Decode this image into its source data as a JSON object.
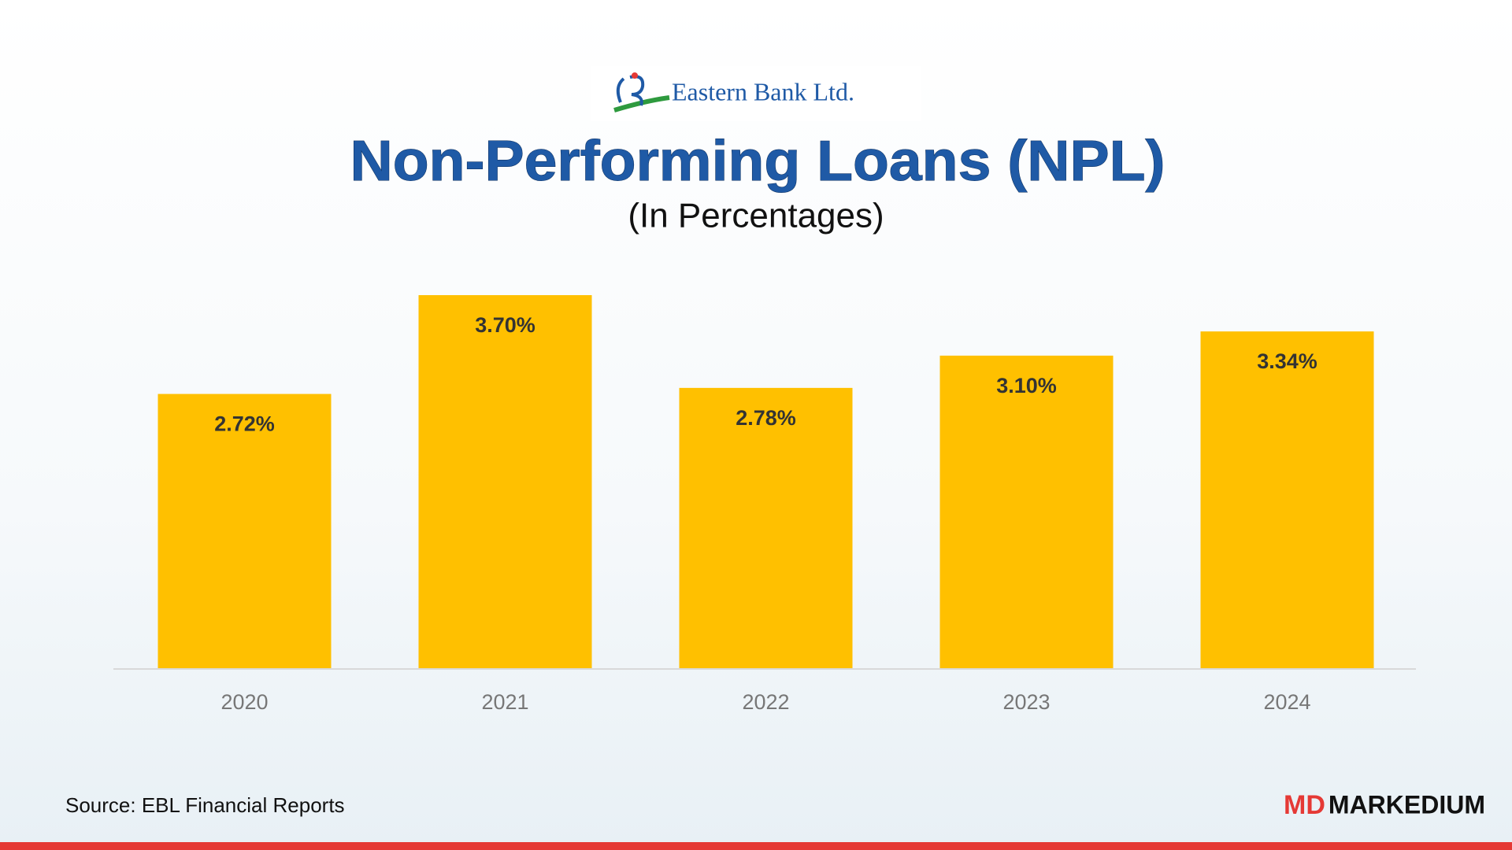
{
  "logo_text": "Eastern Bank Ltd.",
  "chart_data": {
    "type": "bar",
    "title": "Non-Performing Loans (NPL)",
    "subtitle": "(In Percentages)",
    "categories": [
      "2020",
      "2021",
      "2022",
      "2023",
      "2024"
    ],
    "values": [
      2.72,
      3.7,
      2.78,
      3.1,
      3.34
    ],
    "value_labels": [
      "2.72%",
      "3.70%",
      "2.78%",
      "3.10%",
      "3.34%"
    ],
    "color": "#ffc000"
  },
  "footer": {
    "source": "Source: EBL Financial Reports",
    "brand_mark": "MD",
    "brand_name": "MARKEDIUM"
  }
}
